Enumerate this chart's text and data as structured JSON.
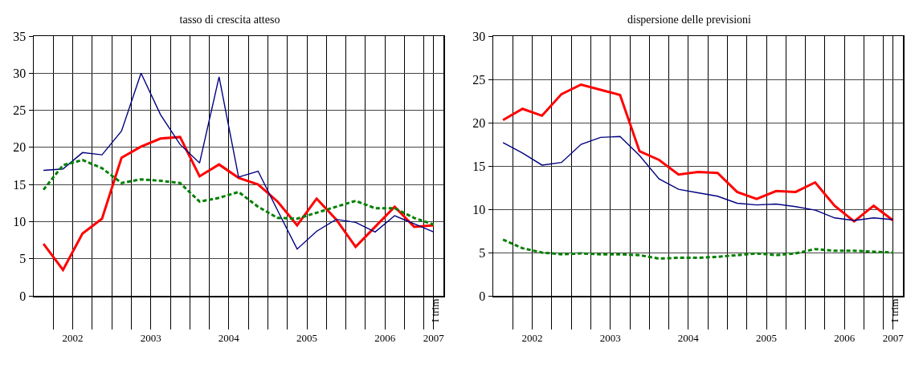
{
  "chart_data": [
    {
      "type": "line",
      "title": "tasso di crescita atteso",
      "x": [
        2002,
        2002.25,
        2002.5,
        2002.75,
        2003,
        2003.25,
        2003.5,
        2003.75,
        2004,
        2004.25,
        2004.5,
        2004.75,
        2005,
        2005.25,
        2005.5,
        2005.75,
        2006,
        2006.25,
        2006.5,
        2006.75,
        2007
      ],
      "series": [
        {
          "color": "#ff0000",
          "line_style": "solid",
          "values": [
            7.0,
            3.5,
            8.4,
            10.4,
            18.6,
            20.1,
            21.2,
            21.4,
            16.1,
            17.7,
            15.9,
            15.0,
            12.7,
            9.5,
            13.1,
            10.3,
            6.6,
            9.3,
            12.0,
            9.3,
            9.5
          ]
        },
        {
          "color": "#000080",
          "line_style": "solid",
          "values": [
            16.9,
            17.1,
            19.3,
            19.0,
            22.2,
            30.0,
            24.4,
            20.4,
            17.9,
            29.5,
            16.0,
            16.8,
            11.5,
            6.3,
            8.7,
            10.3,
            9.9,
            8.6,
            10.8,
            9.7,
            8.6
          ]
        },
        {
          "color": "#008000",
          "line_style": "dashed",
          "values": [
            14.3,
            17.6,
            18.3,
            17.2,
            15.2,
            15.7,
            15.5,
            15.2,
            12.7,
            13.2,
            14.0,
            12.0,
            10.5,
            10.4,
            11.2,
            12.0,
            12.8,
            11.8,
            11.8,
            10.5,
            9.6
          ]
        }
      ],
      "xlim": [
        2001.875,
        2007.125
      ],
      "xticks": [
        {
          "value": 2002.125,
          "label": null
        },
        {
          "value": 2002.375,
          "label": "2002"
        },
        {
          "value": 2002.625,
          "label": null
        },
        {
          "value": 2002.875,
          "label": null
        },
        {
          "value": 2003.125,
          "label": null
        },
        {
          "value": 2003.375,
          "label": "2003"
        },
        {
          "value": 2003.625,
          "label": null
        },
        {
          "value": 2003.875,
          "label": null
        },
        {
          "value": 2004.125,
          "label": null
        },
        {
          "value": 2004.375,
          "label": "2004"
        },
        {
          "value": 2004.625,
          "label": null
        },
        {
          "value": 2004.875,
          "label": null
        },
        {
          "value": 2005.125,
          "label": null
        },
        {
          "value": 2005.375,
          "label": "2005"
        },
        {
          "value": 2005.625,
          "label": null
        },
        {
          "value": 2005.875,
          "label": null
        },
        {
          "value": 2006.125,
          "label": null
        },
        {
          "value": 2006.375,
          "label": "2006"
        },
        {
          "value": 2006.625,
          "label": null
        },
        {
          "value": 2006.875,
          "label": null
        },
        {
          "value": 2007,
          "label": "2007"
        }
      ],
      "ylim": [
        0,
        35
      ],
      "yticks": [
        0,
        5,
        10,
        15,
        20,
        25,
        30,
        35
      ],
      "annotations": [
        "I trim"
      ],
      "grid": true,
      "marker": "none"
    },
    {
      "type": "line",
      "title": "dispersione delle previsioni",
      "x": [
        2002,
        2002.25,
        2002.5,
        2002.75,
        2003,
        2003.25,
        2003.5,
        2003.75,
        2004,
        2004.25,
        2004.5,
        2004.75,
        2005,
        2005.25,
        2005.5,
        2005.75,
        2006,
        2006.25,
        2006.5,
        2006.75,
        2007
      ],
      "series": [
        {
          "color": "#ff0000",
          "line_style": "solid",
          "values": [
            20.3,
            21.6,
            20.8,
            23.3,
            24.4,
            23.8,
            23.2,
            16.7,
            15.7,
            14.0,
            14.3,
            14.2,
            12.0,
            11.2,
            12.1,
            12.0,
            13.1,
            10.4,
            8.6,
            10.4,
            8.7
          ]
        },
        {
          "color": "#000080",
          "line_style": "solid",
          "values": [
            17.7,
            16.5,
            15.1,
            15.4,
            17.5,
            18.3,
            18.4,
            16.2,
            13.5,
            12.3,
            11.9,
            11.5,
            10.7,
            10.5,
            10.6,
            10.3,
            9.9,
            9.0,
            8.7,
            9.0,
            8.8
          ]
        },
        {
          "color": "#008000",
          "line_style": "dashed",
          "values": [
            6.5,
            5.5,
            5.0,
            4.8,
            4.9,
            4.8,
            4.8,
            4.7,
            4.3,
            4.4,
            4.4,
            4.5,
            4.7,
            4.9,
            4.7,
            4.9,
            5.4,
            5.2,
            5.2,
            5.1,
            5.0
          ]
        }
      ],
      "xlim": [
        2001.875,
        2007.125
      ],
      "xticks": [
        {
          "value": 2002.125,
          "label": null
        },
        {
          "value": 2002.375,
          "label": "2002"
        },
        {
          "value": 2002.625,
          "label": null
        },
        {
          "value": 2002.875,
          "label": null
        },
        {
          "value": 2003.125,
          "label": null
        },
        {
          "value": 2003.375,
          "label": "2003"
        },
        {
          "value": 2003.625,
          "label": null
        },
        {
          "value": 2003.875,
          "label": null
        },
        {
          "value": 2004.125,
          "label": null
        },
        {
          "value": 2004.375,
          "label": "2004"
        },
        {
          "value": 2004.625,
          "label": null
        },
        {
          "value": 2004.875,
          "label": null
        },
        {
          "value": 2005.125,
          "label": null
        },
        {
          "value": 2005.375,
          "label": "2005"
        },
        {
          "value": 2005.625,
          "label": null
        },
        {
          "value": 2005.875,
          "label": null
        },
        {
          "value": 2006.125,
          "label": null
        },
        {
          "value": 2006.375,
          "label": "2006"
        },
        {
          "value": 2006.625,
          "label": null
        },
        {
          "value": 2006.875,
          "label": null
        },
        {
          "value": 2007,
          "label": "2007"
        }
      ],
      "ylim": [
        0,
        30
      ],
      "yticks": [
        0,
        5,
        10,
        15,
        20,
        25,
        30
      ],
      "annotations": [
        "I trim"
      ],
      "grid": true,
      "marker": "none"
    }
  ]
}
